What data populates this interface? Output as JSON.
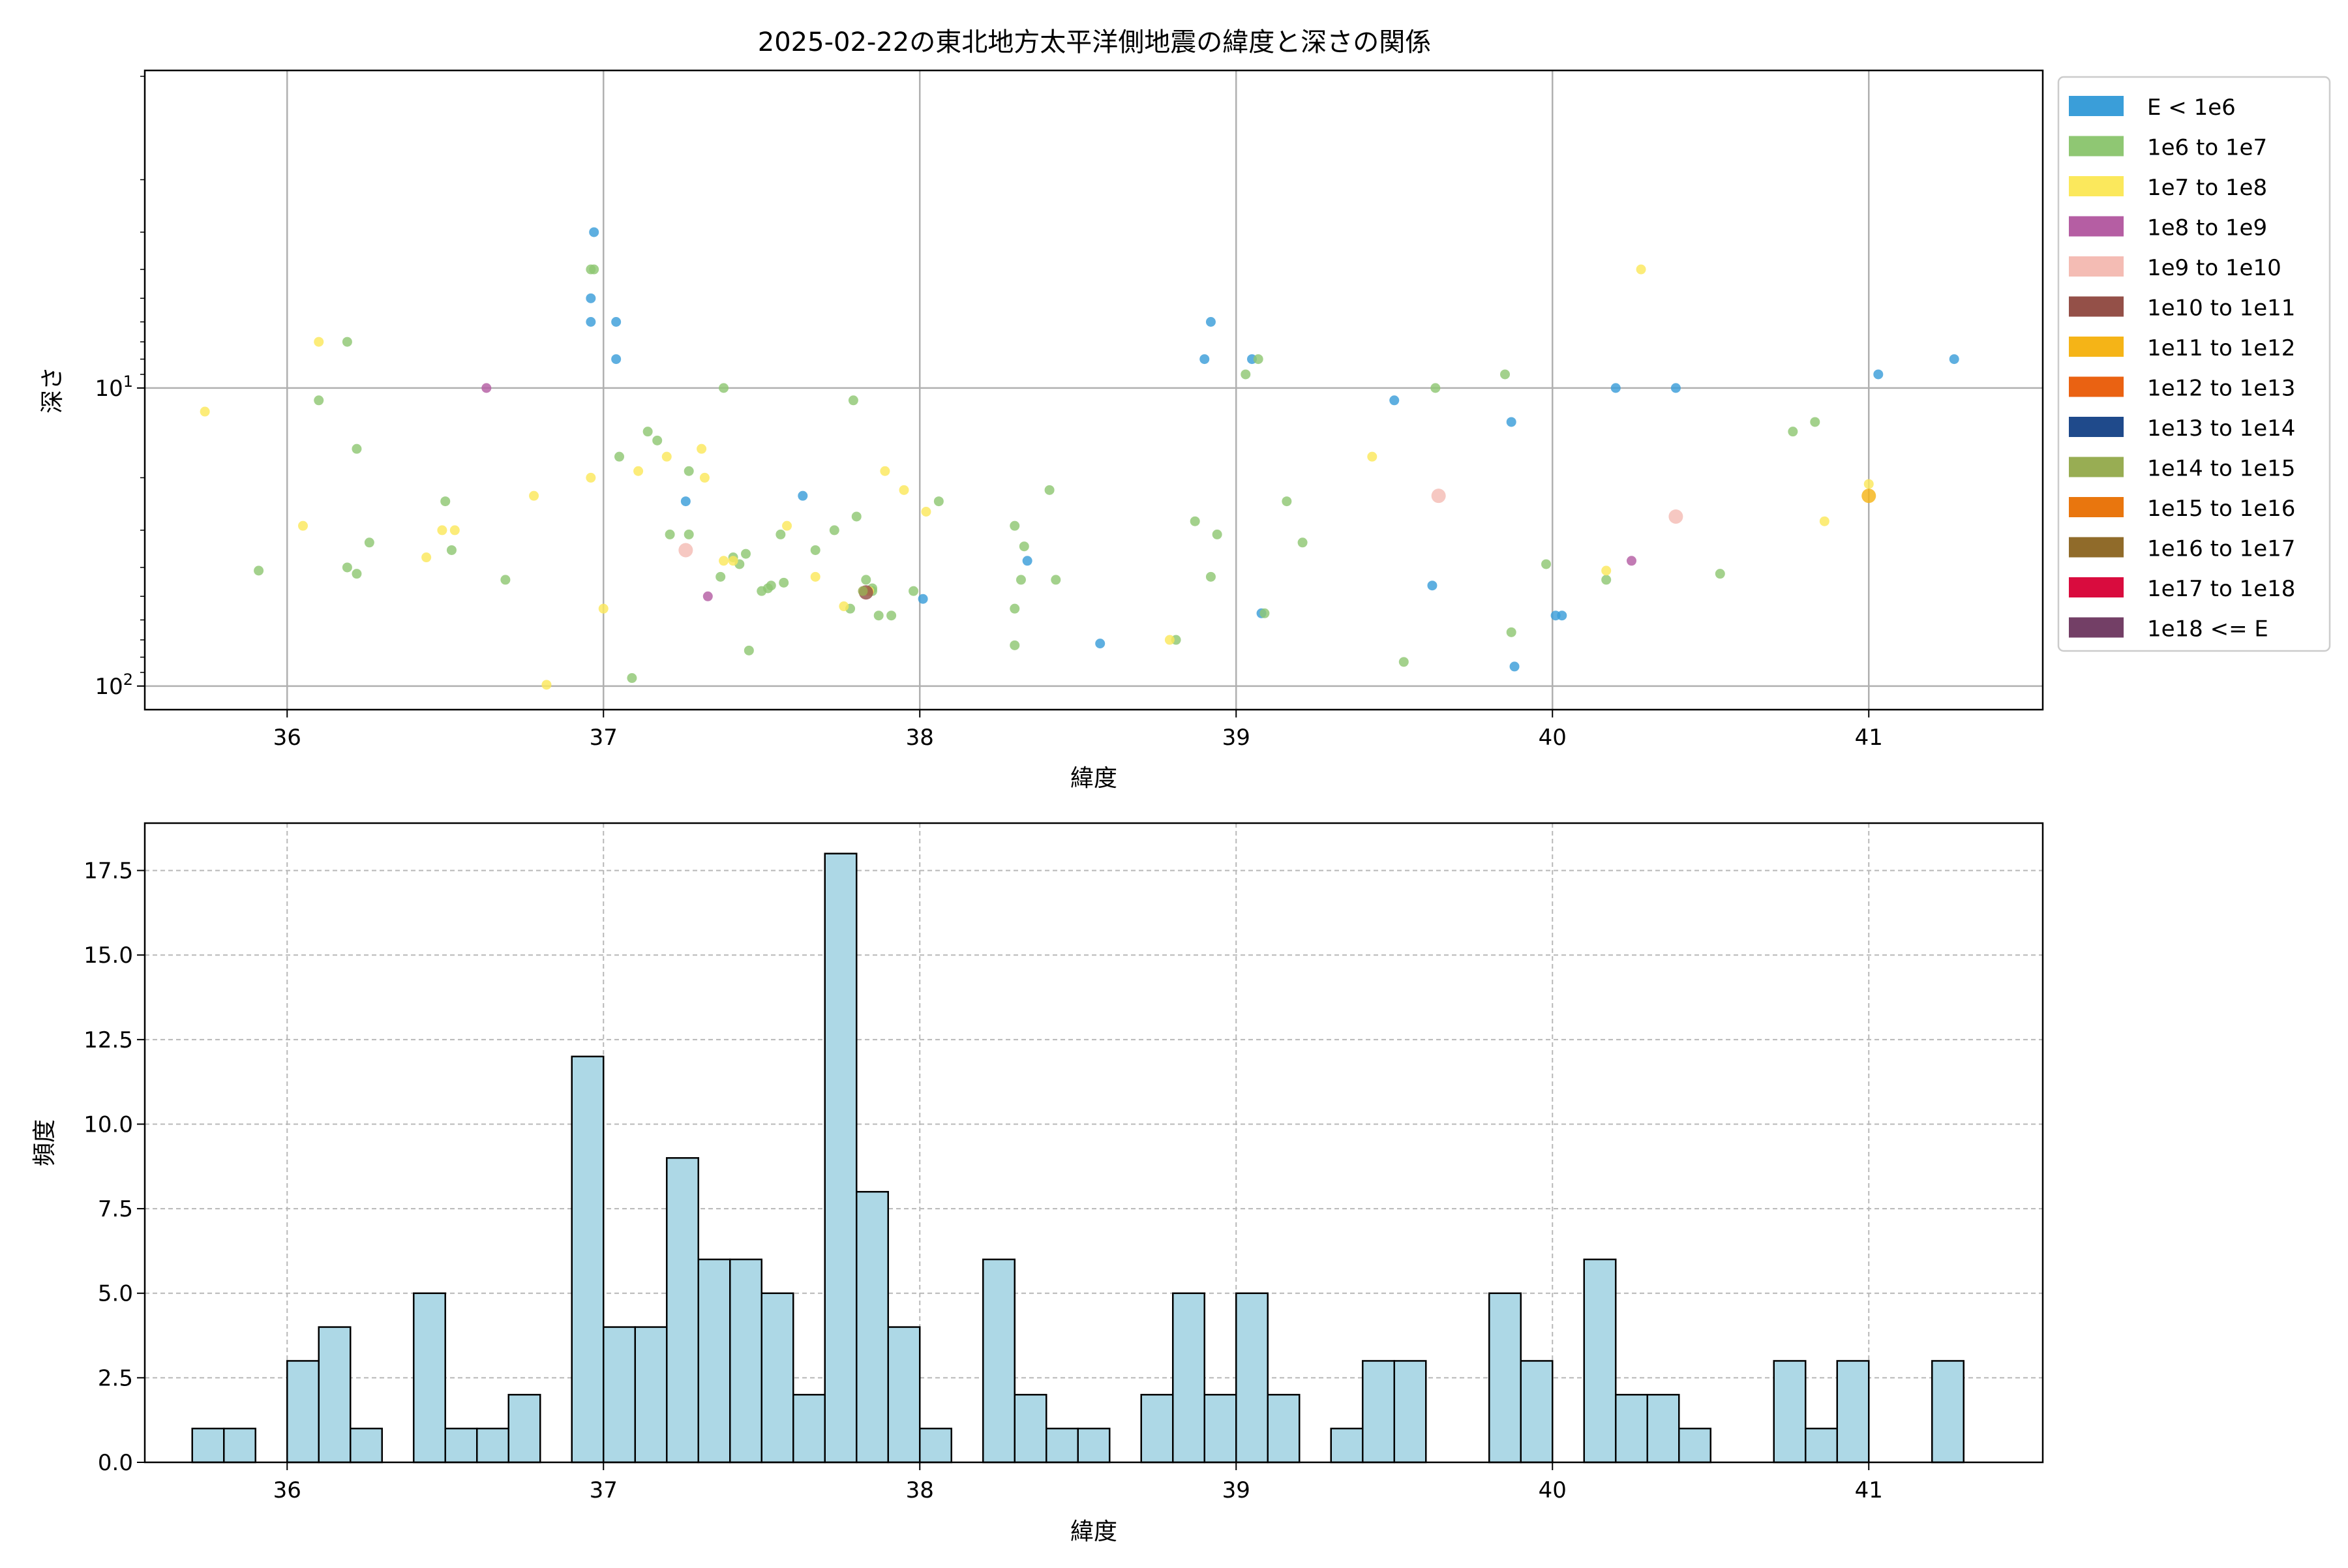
{
  "chart_data": [
    {
      "type": "scatter",
      "title": "2025-02-22の東北地方太平洋側地震の緯度と深さの関係",
      "xlabel": "緯度",
      "ylabel": "深さ",
      "x_ticks": [
        "36",
        "37",
        "38",
        "39",
        "40",
        "41"
      ],
      "x_tick_values": [
        36,
        37,
        38,
        39,
        40,
        41
      ],
      "xlim": [
        35.55,
        41.55
      ],
      "y_scale": "log",
      "y_inverted": true,
      "ylim": [
        0.86,
        120
      ],
      "y_ticks": [
        {
          "value": 10,
          "base": "10",
          "exp": "1"
        },
        {
          "value": 100,
          "base": "10",
          "exp": "2"
        }
      ],
      "grid": true,
      "legend_position": "outside-right",
      "legend": [
        {
          "label": "E < 1e6",
          "color": "#3a9ed9"
        },
        {
          "label": "1e6 to 1e7",
          "color": "#8fc773"
        },
        {
          "label": "1e7 to 1e8",
          "color": "#fbe85c"
        },
        {
          "label": "1e8 to 1e9",
          "color": "#b55ea3"
        },
        {
          "label": "1e9 to 1e10",
          "color": "#f4bcb4"
        },
        {
          "label": "1e10 to 1e11",
          "color": "#945048"
        },
        {
          "label": "1e11 to 1e12",
          "color": "#f5b417"
        },
        {
          "label": "1e12 to 1e13",
          "color": "#ea6212"
        },
        {
          "label": "1e13 to 1e14",
          "color": "#1f4a8b"
        },
        {
          "label": "1e14 to 1e15",
          "color": "#98ad53"
        },
        {
          "label": "1e15 to 1e16",
          "color": "#e9760e"
        },
        {
          "label": "1e16 to 1e17",
          "color": "#906b2a"
        },
        {
          "label": "1e17 to 1e18",
          "color": "#d90c3e"
        },
        {
          "label": "1e18 <= E",
          "color": "#733f66"
        }
      ],
      "points": [
        [
          36.97,
          3.0,
          0
        ],
        [
          36.96,
          5.0,
          0
        ],
        [
          36.96,
          6.0,
          0
        ],
        [
          37.04,
          6.0,
          0
        ],
        [
          37.04,
          8.0,
          0
        ],
        [
          38.92,
          6.0,
          0
        ],
        [
          38.9,
          8.0,
          0
        ],
        [
          39.05,
          8.0,
          0
        ],
        [
          39.5,
          11.0,
          0
        ],
        [
          39.87,
          13.0,
          0
        ],
        [
          40.2,
          10.0,
          0
        ],
        [
          40.39,
          10.0,
          0
        ],
        [
          41.03,
          9.0,
          0
        ],
        [
          41.27,
          8.0,
          0
        ],
        [
          37.26,
          24.0,
          0
        ],
        [
          37.63,
          23.0,
          0
        ],
        [
          38.34,
          38.0,
          0
        ],
        [
          38.01,
          51.0,
          0
        ],
        [
          39.62,
          46.0,
          0
        ],
        [
          40.01,
          58.0,
          0
        ],
        [
          40.03,
          58.0,
          0
        ],
        [
          39.08,
          57.0,
          0
        ],
        [
          38.57,
          72.0,
          0
        ],
        [
          39.88,
          86.0,
          0
        ],
        [
          36.96,
          4.0,
          1
        ],
        [
          36.97,
          4.0,
          1
        ],
        [
          36.1,
          11.0,
          1
        ],
        [
          36.19,
          7.0,
          1
        ],
        [
          36.22,
          16.0,
          1
        ],
        [
          36.26,
          33.0,
          1
        ],
        [
          35.91,
          41.0,
          1
        ],
        [
          36.19,
          40.0,
          1
        ],
        [
          36.22,
          42.0,
          1
        ],
        [
          36.5,
          24.0,
          1
        ],
        [
          36.52,
          35.0,
          1
        ],
        [
          36.69,
          44.0,
          1
        ],
        [
          37.05,
          17.0,
          1
        ],
        [
          37.14,
          14.0,
          1
        ],
        [
          37.17,
          15.0,
          1
        ],
        [
          37.21,
          31.0,
          1
        ],
        [
          37.27,
          19.0,
          1
        ],
        [
          37.27,
          31.0,
          1
        ],
        [
          37.38,
          10.0,
          1
        ],
        [
          37.37,
          43.0,
          1
        ],
        [
          37.41,
          37.0,
          1
        ],
        [
          37.45,
          36.0,
          1
        ],
        [
          37.43,
          39.0,
          1
        ],
        [
          37.5,
          48.0,
          1
        ],
        [
          37.53,
          46.0,
          1
        ],
        [
          37.52,
          47.0,
          1
        ],
        [
          37.57,
          45.0,
          1
        ],
        [
          37.56,
          31.0,
          1
        ],
        [
          37.46,
          76.0,
          1
        ],
        [
          37.09,
          94.0,
          1
        ],
        [
          37.67,
          35.0,
          1
        ],
        [
          37.73,
          30.0,
          1
        ],
        [
          37.79,
          11.0,
          1
        ],
        [
          37.8,
          27.0,
          1
        ],
        [
          37.78,
          55.0,
          1
        ],
        [
          37.83,
          44.0,
          1
        ],
        [
          37.85,
          47.0,
          1
        ],
        [
          37.87,
          58.0,
          1
        ],
        [
          37.91,
          58.0,
          1
        ],
        [
          37.98,
          48.0,
          1
        ],
        [
          38.06,
          24.0,
          1
        ],
        [
          38.3,
          29.0,
          1
        ],
        [
          38.33,
          34.0,
          1
        ],
        [
          38.32,
          44.0,
          1
        ],
        [
          38.41,
          22.0,
          1
        ],
        [
          38.43,
          44.0,
          1
        ],
        [
          38.3,
          55.0,
          1
        ],
        [
          38.3,
          73.0,
          1
        ],
        [
          38.81,
          70.0,
          1
        ],
        [
          38.87,
          28.0,
          1
        ],
        [
          38.92,
          43.0,
          1
        ],
        [
          38.94,
          31.0,
          1
        ],
        [
          39.03,
          9.0,
          1
        ],
        [
          39.07,
          8.0,
          1
        ],
        [
          39.09,
          57.0,
          1
        ],
        [
          39.16,
          24.0,
          1
        ],
        [
          39.21,
          33.0,
          1
        ],
        [
          39.53,
          83.0,
          1
        ],
        [
          39.63,
          10.0,
          1
        ],
        [
          39.85,
          9.0,
          1
        ],
        [
          39.87,
          66.0,
          1
        ],
        [
          39.98,
          39.0,
          1
        ],
        [
          40.17,
          44.0,
          1
        ],
        [
          40.53,
          42.0,
          1
        ],
        [
          40.76,
          14.0,
          1
        ],
        [
          40.83,
          13.0,
          1
        ],
        [
          37.85,
          48.0,
          1
        ],
        [
          35.74,
          12.0,
          2
        ],
        [
          36.1,
          7.0,
          2
        ],
        [
          36.05,
          29.0,
          2
        ],
        [
          36.44,
          37.0,
          2
        ],
        [
          36.49,
          30.0,
          2
        ],
        [
          36.53,
          30.0,
          2
        ],
        [
          36.78,
          23.0,
          2
        ],
        [
          36.96,
          20.0,
          2
        ],
        [
          37.0,
          55.0,
          2
        ],
        [
          36.82,
          99.0,
          2
        ],
        [
          37.11,
          19.0,
          2
        ],
        [
          37.2,
          17.0,
          2
        ],
        [
          37.31,
          16.0,
          2
        ],
        [
          37.32,
          20.0,
          2
        ],
        [
          37.38,
          38.0,
          2
        ],
        [
          37.41,
          38.0,
          2
        ],
        [
          37.58,
          29.0,
          2
        ],
        [
          37.67,
          43.0,
          2
        ],
        [
          37.76,
          54.0,
          2
        ],
        [
          37.84,
          48.0,
          2
        ],
        [
          37.89,
          19.0,
          2
        ],
        [
          37.95,
          22.0,
          2
        ],
        [
          38.02,
          26.0,
          2
        ],
        [
          38.79,
          70.0,
          2
        ],
        [
          39.43,
          17.0,
          2
        ],
        [
          40.28,
          4.0,
          2
        ],
        [
          40.17,
          41.0,
          2
        ],
        [
          40.86,
          28.0,
          2
        ],
        [
          41.0,
          21.0,
          2
        ],
        [
          36.63,
          10.0,
          3
        ],
        [
          37.33,
          50.0,
          3
        ],
        [
          40.25,
          38.0,
          3
        ],
        [
          37.26,
          35.0,
          4
        ],
        [
          39.64,
          23.0,
          4
        ],
        [
          40.39,
          27.0,
          4
        ],
        [
          37.83,
          48.5,
          5
        ],
        [
          41.0,
          23.0,
          6
        ],
        [
          37.82,
          48.0,
          9
        ]
      ]
    },
    {
      "type": "bar",
      "xlabel": "緯度",
      "ylabel": "頻度",
      "x_ticks": [
        "36",
        "37",
        "38",
        "39",
        "40",
        "41"
      ],
      "x_tick_values": [
        36,
        37,
        38,
        39,
        40,
        41
      ],
      "xlim": [
        35.55,
        41.55
      ],
      "ylim": [
        0,
        18.9
      ],
      "y_ticks": [
        "0.0",
        "2.5",
        "5.0",
        "7.5",
        "10.0",
        "12.5",
        "15.0",
        "17.5"
      ],
      "y_tick_values": [
        0,
        2.5,
        5,
        7.5,
        10,
        12.5,
        15,
        17.5
      ],
      "grid": true,
      "bar_color": "#add8e6",
      "bin_start": 35.7,
      "bin_width": 0.1,
      "values": [
        1,
        1,
        0,
        3,
        4,
        1,
        0,
        5,
        1,
        1,
        2,
        0,
        12,
        4,
        4,
        9,
        6,
        6,
        5,
        2,
        18,
        8,
        4,
        1,
        0,
        6,
        2,
        1,
        1,
        0,
        2,
        5,
        2,
        5,
        2,
        0,
        1,
        3,
        3,
        0,
        0,
        5,
        3,
        0,
        6,
        2,
        2,
        1,
        0,
        0,
        3,
        1,
        3,
        0,
        0,
        3
      ]
    }
  ]
}
